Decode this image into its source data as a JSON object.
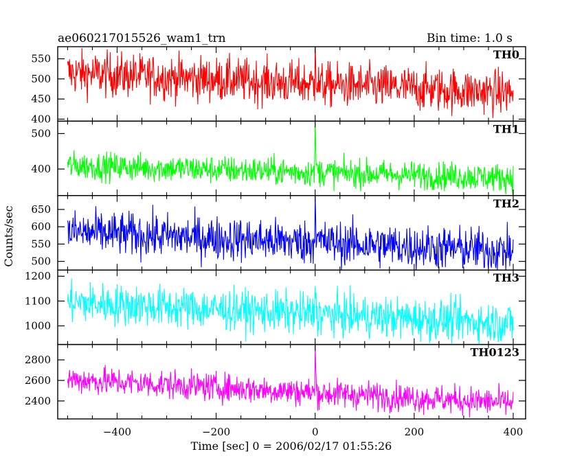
{
  "header": {
    "title": "ae060217015526_wam1_trn",
    "bin_time": "Bin time: 1.0 s"
  },
  "chart_data": {
    "type": "line",
    "title": "ae060217015526_wam1_trn",
    "subtitle": "Bin time: 1.0 s",
    "xlabel": "Time [sec] 0 = 2006/02/17 01:55:26",
    "ylabel": "Counts/sec",
    "xlim": [
      -520,
      425
    ],
    "x_ticks": [
      -400,
      -200,
      0,
      200,
      400
    ],
    "x_tick_labels": [
      "−400",
      "−200",
      "0",
      "200",
      "400"
    ],
    "x_range": [
      -500,
      400
    ],
    "panels": [
      {
        "name": "TH0",
        "color": "#ff0000",
        "ylim": [
          395,
          580
        ],
        "y_ticks": [
          400,
          450,
          500,
          550
        ],
        "base_start": 515,
        "base_end": 465,
        "noise": 28,
        "burst_peak": 585,
        "burst_baseline_after": 480
      },
      {
        "name": "TH1",
        "color": "#00ff00",
        "ylim": [
          325,
          535
        ],
        "y_ticks": [
          400,
          500
        ],
        "base_start": 410,
        "base_end": 375,
        "noise": 20,
        "burst_peak": 535,
        "burst_baseline_after": 395
      },
      {
        "name": "TH2",
        "color": "#0000ff",
        "ylim": [
          475,
          690
        ],
        "y_ticks": [
          500,
          550,
          600,
          650
        ],
        "base_start": 585,
        "base_end": 530,
        "noise": 32,
        "burst_peak": 690,
        "burst_baseline_after": 560
      },
      {
        "name": "TH3",
        "color": "#00ffff",
        "ylim": [
          925,
          1225
        ],
        "y_ticks": [
          1000,
          1100,
          1200
        ],
        "base_start": 1095,
        "base_end": 1010,
        "noise": 42,
        "burst_peak": 1160,
        "burst_baseline_after": 1040
      },
      {
        "name": "TH0123",
        "color": "#ff00ff",
        "ylim": [
          2225,
          2950
        ],
        "y_ticks": [
          2400,
          2600,
          2800
        ],
        "base_start": 2610,
        "base_end": 2380,
        "noise": 70,
        "burst_peak": 2950,
        "burst_baseline_after": 2460
      }
    ]
  }
}
